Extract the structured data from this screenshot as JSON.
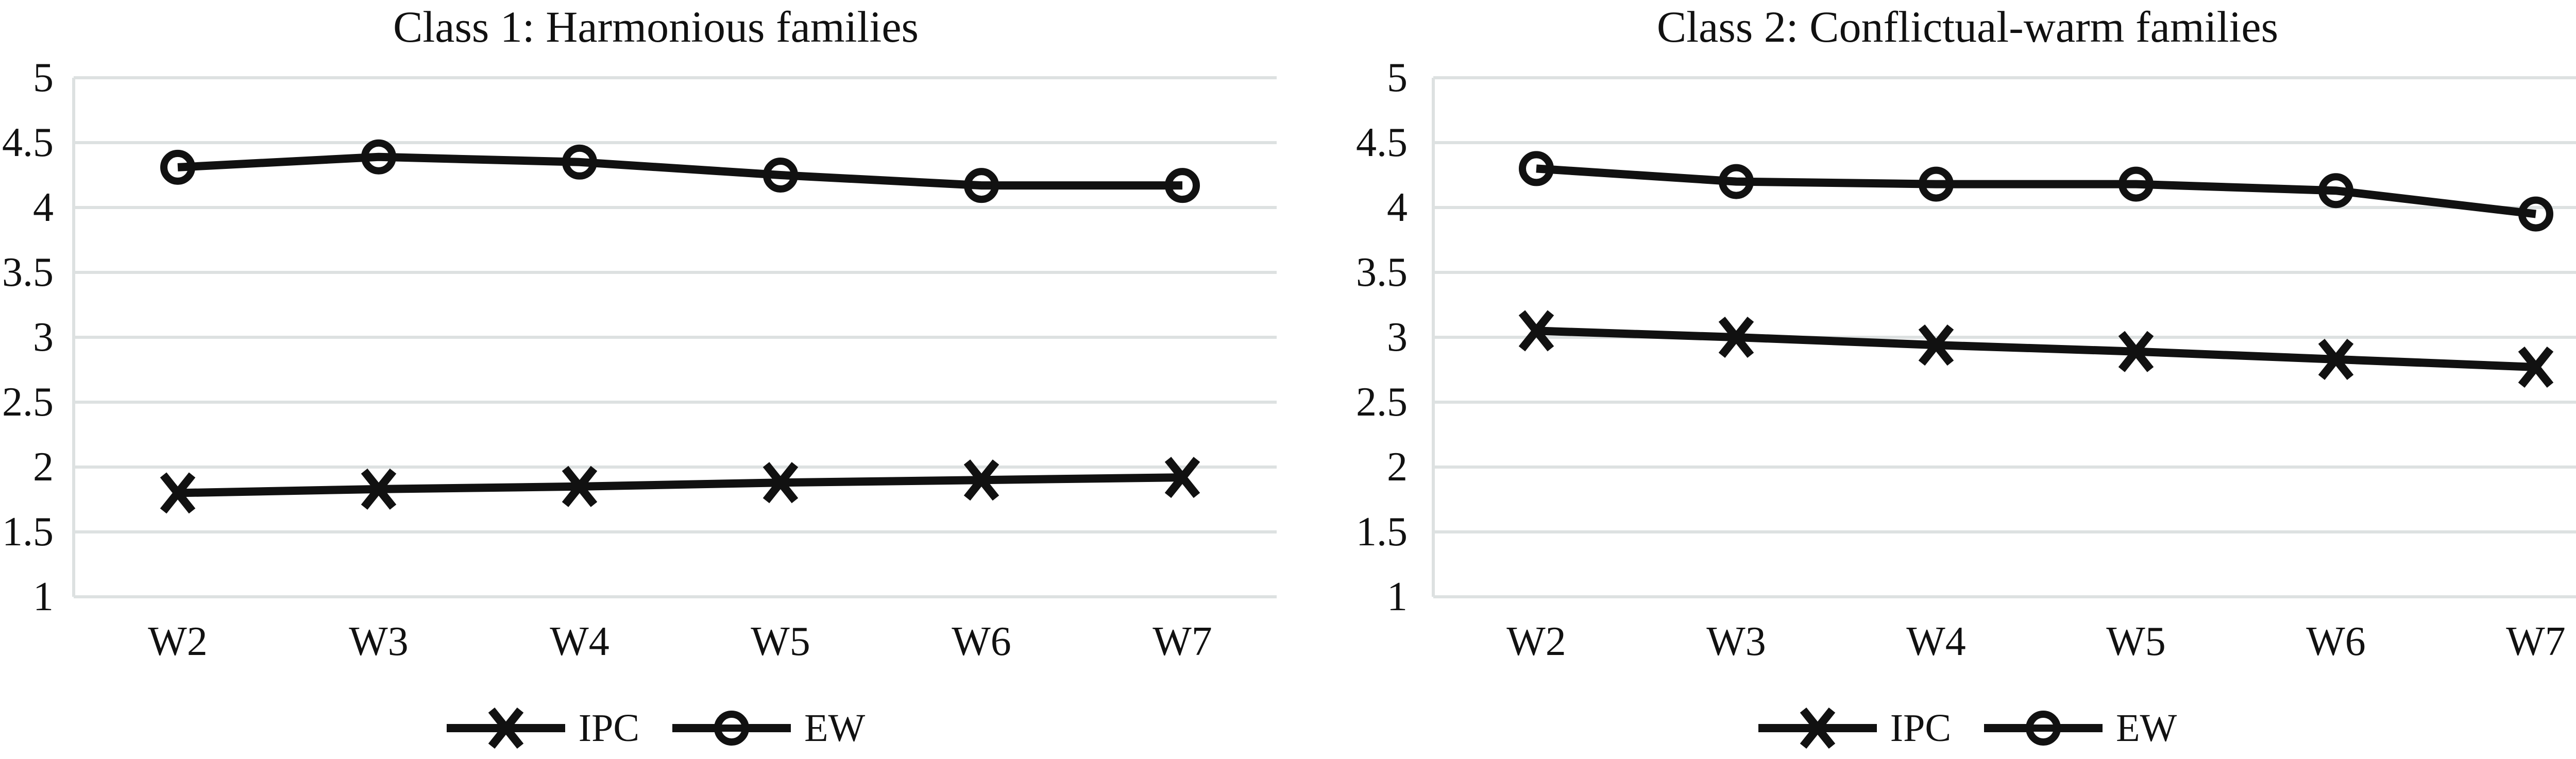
{
  "figure": {
    "background": "#ffffff",
    "text_color": "#111111",
    "line_color": "#111111",
    "grid_color": "#dde1e1"
  },
  "chart_data": [
    {
      "type": "line",
      "title": "Class 1: Harmonious families",
      "categories": [
        "W2",
        "W3",
        "W4",
        "W5",
        "W6",
        "W7"
      ],
      "series": [
        {
          "name": "IPC",
          "marker": "x-cross",
          "values": [
            1.8,
            1.83,
            1.85,
            1.88,
            1.9,
            1.92
          ]
        },
        {
          "name": "EW",
          "marker": "open-circle",
          "values": [
            4.31,
            4.39,
            4.35,
            4.25,
            4.17,
            4.17
          ]
        }
      ],
      "ylim": [
        1,
        5
      ],
      "ytick_step": 0.5,
      "ytick_labels": [
        "5",
        "4.5",
        "4",
        "3.5",
        "3",
        "2.5",
        "2",
        "1.5",
        "1"
      ],
      "grid": true,
      "legend_position": "bottom"
    },
    {
      "type": "line",
      "title": "Class 2: Conflictual-warm families",
      "categories": [
        "W2",
        "W3",
        "W4",
        "W5",
        "W6",
        "W7"
      ],
      "series": [
        {
          "name": "IPC",
          "marker": "x-cross",
          "values": [
            3.05,
            3.0,
            2.94,
            2.89,
            2.83,
            2.77
          ]
        },
        {
          "name": "EW",
          "marker": "open-circle",
          "values": [
            4.3,
            4.2,
            4.18,
            4.18,
            4.13,
            3.95
          ]
        }
      ],
      "ylim": [
        1,
        5
      ],
      "ytick_step": 0.5,
      "ytick_labels": [
        "5",
        "4.5",
        "4",
        "3.5",
        "3",
        "2.5",
        "2",
        "1.5",
        "1"
      ],
      "grid": true,
      "legend_position": "bottom"
    }
  ]
}
